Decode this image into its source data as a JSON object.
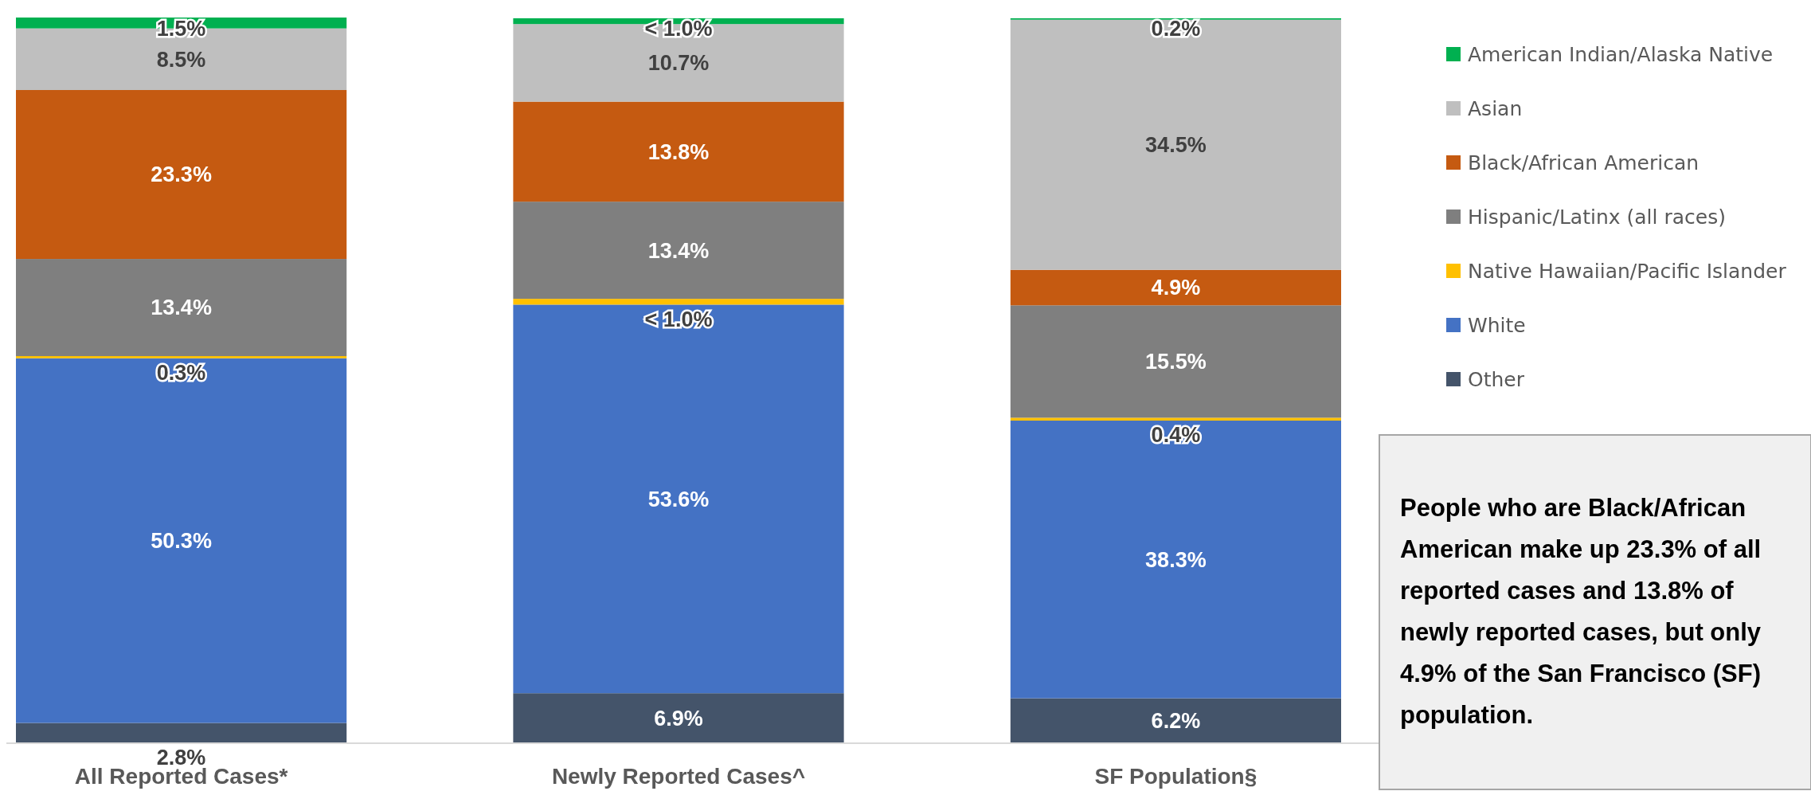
{
  "chart_data": {
    "type": "bar",
    "stacked": true,
    "categories": [
      "All Reported Cases*",
      "Newly Reported Cases^",
      "SF Population§"
    ],
    "tick_labels": "x",
    "legend": "right",
    "series": [
      {
        "name": "Other",
        "color": "#44546a",
        "values": [
          2.8,
          6.9,
          6.2
        ],
        "value_labels": [
          "2.8%",
          "6.9%",
          "6.2%"
        ]
      },
      {
        "name": "White",
        "color": "#4472c4",
        "values": [
          50.3,
          53.6,
          38.3
        ],
        "value_labels": [
          "50.3%",
          "53.6%",
          "38.3%"
        ]
      },
      {
        "name": "Native Hawaiian/Pacific Islander",
        "color": "#ffc000",
        "values": [
          0.3,
          0.8,
          0.4
        ],
        "value_labels": [
          "0.3%",
          "< 1.0%",
          "0.4%"
        ]
      },
      {
        "name": "Hispanic/Latinx (all races)",
        "color": "#7f7f7f",
        "values": [
          13.4,
          13.4,
          15.5
        ],
        "value_labels": [
          "13.4%",
          "13.4%",
          "15.5%"
        ]
      },
      {
        "name": "Black/African American",
        "color": "#c55a11",
        "values": [
          23.3,
          13.8,
          4.9
        ],
        "value_labels": [
          "23.3%",
          "13.8%",
          "4.9%"
        ]
      },
      {
        "name": "Asian",
        "color": "#bfbfbf",
        "values": [
          8.5,
          10.7,
          34.5
        ],
        "value_labels": [
          "8.5%",
          "10.7%",
          "34.5%"
        ]
      },
      {
        "name": "American Indian/Alaska Native",
        "color": "#00b050",
        "values": [
          1.5,
          0.8,
          0.2
        ],
        "value_labels": [
          "1.5%",
          "< 1.0%",
          "0.2%"
        ]
      }
    ],
    "annotations": [
      "People who are Black/African American make up 23.3% of all reported cases and 13.8% of newly reported cases, but only 4.9% of the San Francisco (SF) population."
    ]
  }
}
